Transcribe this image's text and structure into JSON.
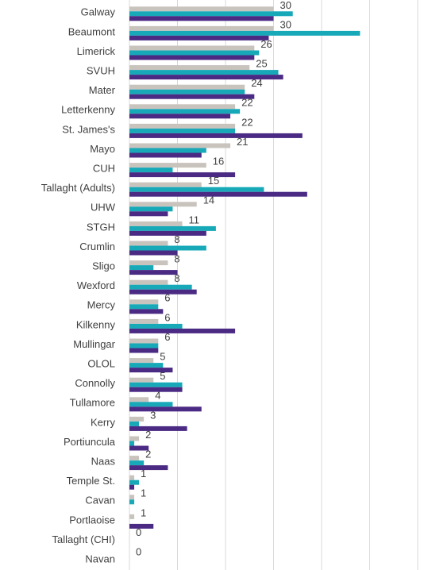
{
  "chart_data": {
    "type": "bar",
    "orientation": "horizontal",
    "categories": [
      "Galway",
      "Beaumont",
      "Limerick",
      "SVUH",
      "Mater",
      "Letterkenny",
      "St. James's",
      "Mayo",
      "CUH",
      "Tallaght (Adults)",
      "UHW",
      "STGH",
      "Crumlin",
      "Sligo",
      "Wexford",
      "Mercy",
      "Kilkenny",
      "Mullingar",
      "OLOL",
      "Connolly",
      "Tullamore",
      "Kerry",
      "Portiuncula",
      "Naas",
      "Temple St.",
      "Cavan",
      "Portlaoise",
      "Tallaght (CHI)",
      "Navan"
    ],
    "series": [
      {
        "color": "#c9c3bd",
        "labels": true,
        "values": [
          30,
          30,
          26,
          25,
          24,
          22,
          22,
          21,
          16,
          15,
          14,
          11,
          8,
          8,
          8,
          6,
          6,
          6,
          5,
          5,
          4,
          3,
          2,
          2,
          1,
          1,
          1,
          0,
          0
        ]
      },
      {
        "color": "#17a9b8",
        "values": [
          34,
          48,
          27,
          31,
          24,
          23,
          22,
          16,
          9,
          28,
          9,
          18,
          16,
          5,
          13,
          6,
          11,
          6,
          7,
          11,
          9,
          2,
          1,
          3,
          2,
          1,
          0,
          0,
          0
        ]
      },
      {
        "color": "#4b2a84",
        "values": [
          30,
          29,
          26,
          32,
          26,
          21,
          36,
          15,
          22,
          37,
          8,
          16,
          10,
          10,
          14,
          7,
          22,
          6,
          9,
          11,
          15,
          12,
          4,
          8,
          1,
          0,
          5,
          0,
          0
        ]
      }
    ],
    "xlim": [
      0,
      60
    ],
    "xticks": [
      0,
      10,
      20,
      30,
      40,
      50,
      60
    ],
    "grid": true
  }
}
